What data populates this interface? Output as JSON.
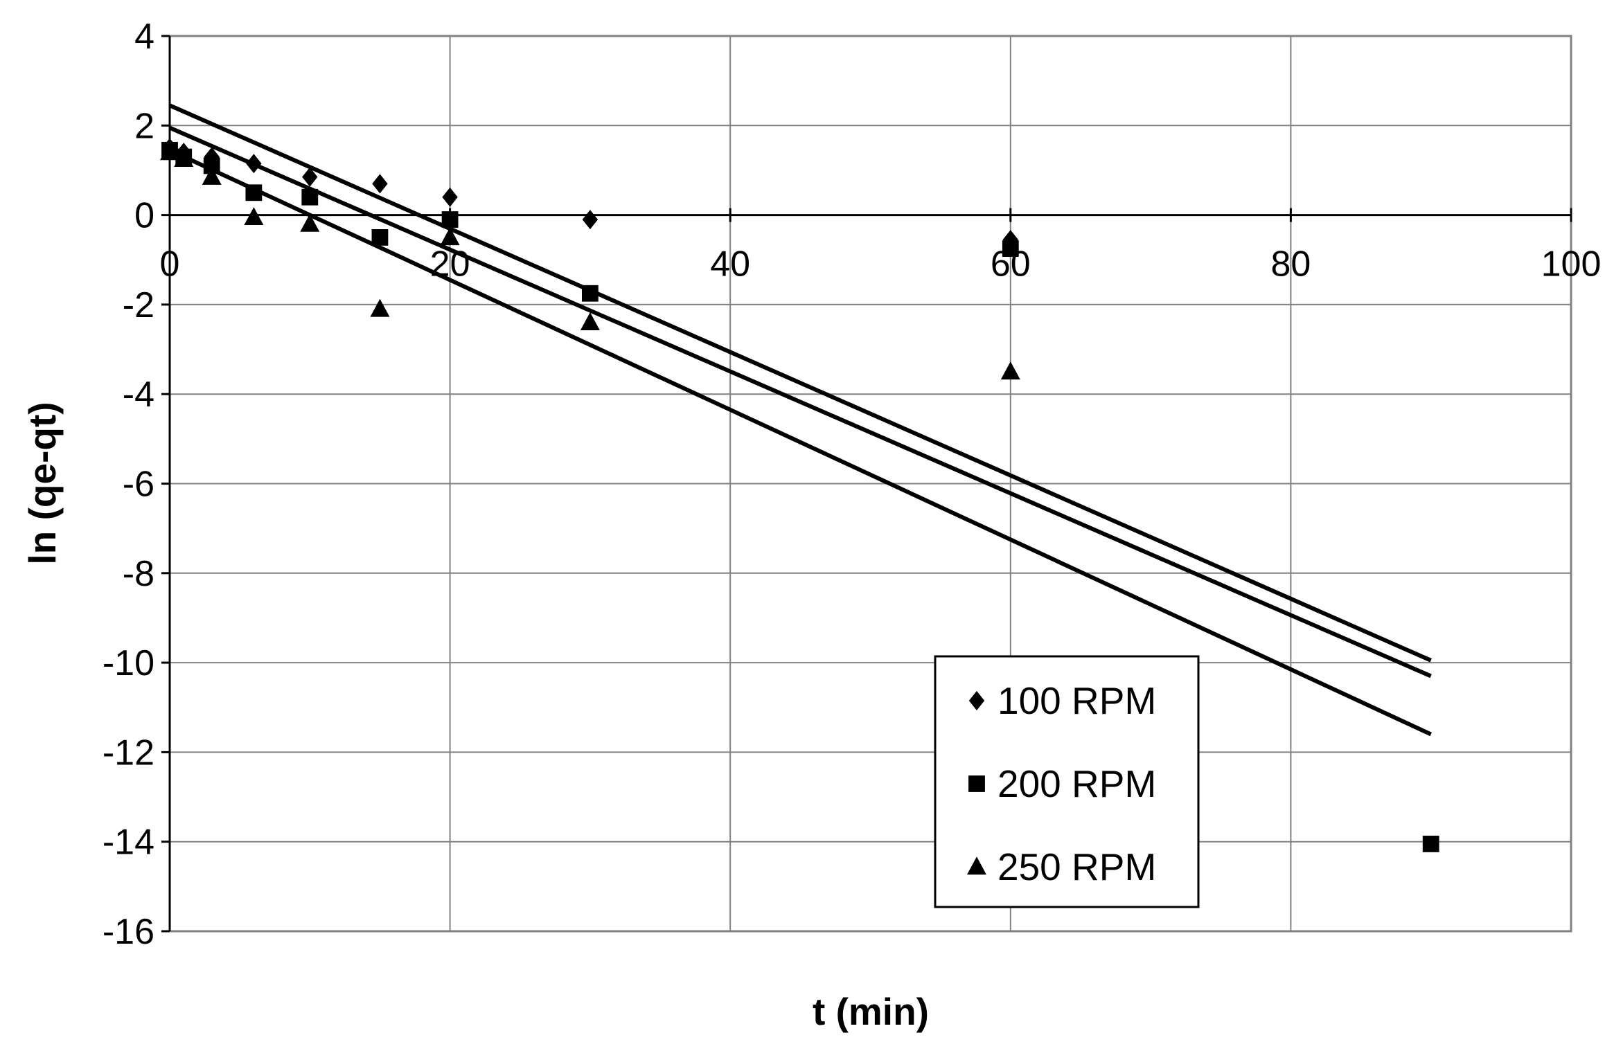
{
  "chart_data": {
    "type": "scatter",
    "title": "",
    "xlabel": "t (min)",
    "ylabel": "ln (qe-qt)",
    "xlim": [
      0,
      100
    ],
    "ylim": [
      -16,
      4
    ],
    "xticks": [
      0,
      20,
      40,
      60,
      80,
      100
    ],
    "yticks": [
      4,
      2,
      0,
      -2,
      -4,
      -6,
      -8,
      -10,
      -12,
      -14,
      -16
    ],
    "grid": true,
    "legend_position": "lower-right",
    "series": [
      {
        "name": "100 RPM",
        "marker": "diamond",
        "points": [
          [
            0,
            1.5
          ],
          [
            1,
            1.4
          ],
          [
            3,
            1.3
          ],
          [
            6,
            1.15
          ],
          [
            10,
            0.85
          ],
          [
            15,
            0.7
          ],
          [
            20,
            0.4
          ],
          [
            30,
            -0.1
          ],
          [
            60,
            -0.55
          ]
        ],
        "trendline": [
          [
            0,
            2.45
          ],
          [
            90,
            -9.95
          ]
        ]
      },
      {
        "name": "200 RPM",
        "marker": "square",
        "points": [
          [
            0,
            1.45
          ],
          [
            1,
            1.3
          ],
          [
            3,
            1.1
          ],
          [
            6,
            0.5
          ],
          [
            10,
            0.4
          ],
          [
            15,
            -0.5
          ],
          [
            20,
            -0.1
          ],
          [
            30,
            -1.75
          ],
          [
            60,
            -0.75
          ],
          [
            90,
            -14.05
          ]
        ],
        "trendline": [
          [
            0,
            1.95
          ],
          [
            90,
            -10.3
          ]
        ]
      },
      {
        "name": "250 RPM",
        "marker": "triangle",
        "points": [
          [
            0,
            1.4
          ],
          [
            1,
            1.25
          ],
          [
            3,
            0.85
          ],
          [
            6,
            -0.05
          ],
          [
            10,
            -0.2
          ],
          [
            15,
            -2.1
          ],
          [
            20,
            -0.5
          ],
          [
            30,
            -2.4
          ],
          [
            60,
            -3.5
          ]
        ],
        "trendline": [
          [
            0,
            1.45
          ],
          [
            90,
            -11.6
          ]
        ]
      }
    ]
  }
}
